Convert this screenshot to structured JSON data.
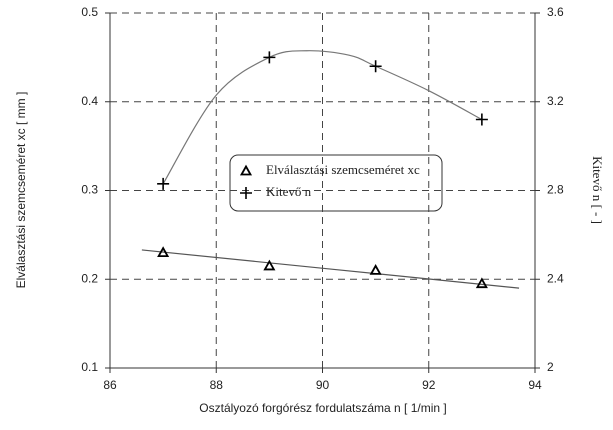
{
  "chart_data": {
    "type": "scatter",
    "x_label": "Osztályozó forgórész fordulatszáma  n [ 1/min ]",
    "y_label": "Elválasztási szemcseméret  xc [ mm ]",
    "y2_label": "Kitevő n [ - ]",
    "xlim": [
      86,
      94
    ],
    "xticks": [
      86,
      88,
      90,
      92,
      94
    ],
    "ylim": [
      0.1,
      0.5
    ],
    "yticks": [
      0.1,
      0.2,
      0.3,
      0.4,
      0.5
    ],
    "y2lim": [
      2,
      3.6
    ],
    "y2ticks": [
      2,
      2.4,
      2.8,
      3.2,
      3.6
    ],
    "grid": true,
    "series": [
      {
        "name": "Elválasztási szemcseméret xc",
        "marker": "triangle",
        "color": "#000000",
        "x": [
          87,
          89,
          91,
          93
        ],
        "values": [
          0.23,
          0.215,
          0.21,
          0.195
        ]
      },
      {
        "name": "Kitevő n",
        "marker": "plus",
        "color": "#000000",
        "axis": "y2",
        "x": [
          87,
          89,
          91,
          93
        ],
        "values": [
          2.83,
          3.4,
          3.36,
          3.12
        ]
      }
    ],
    "fits": [
      {
        "color": "#555555",
        "x": [
          86.6,
          93.7
        ],
        "values": [
          0.233,
          0.19
        ]
      },
      {
        "color": "#777777",
        "axis": "y2",
        "x": [
          87,
          88,
          89,
          89.7,
          90.5,
          91,
          92,
          93
        ],
        "values": [
          2.83,
          3.23,
          3.4,
          3.43,
          3.41,
          3.36,
          3.25,
          3.12
        ]
      }
    ]
  }
}
